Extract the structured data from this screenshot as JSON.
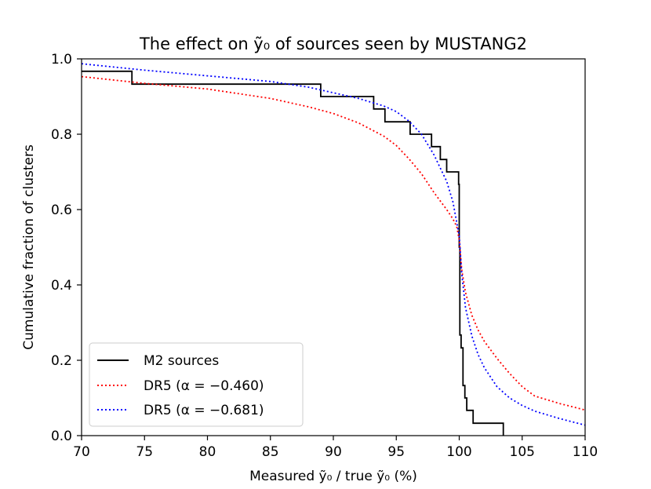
{
  "chart_data": {
    "type": "line",
    "title": "The effect on ỹ₀ of sources seen by MUSTANG2",
    "xlabel": "Measured ỹ₀ / true ỹ₀ (%)",
    "ylabel": "Cumulative fraction of clusters",
    "xlim": [
      70,
      110
    ],
    "ylim": [
      0.0,
      1.0
    ],
    "xticks": [
      70,
      75,
      80,
      85,
      90,
      95,
      100,
      105,
      110
    ],
    "xtick_labels": [
      "70",
      "75",
      "80",
      "85",
      "90",
      "95",
      "100",
      "105",
      "110"
    ],
    "yticks": [
      0.0,
      0.2,
      0.4,
      0.6,
      0.8,
      1.0
    ],
    "ytick_labels": [
      "0.0",
      "0.2",
      "0.4",
      "0.6",
      "0.8",
      "1.0"
    ],
    "grid": false,
    "legend_position": "bottom-left",
    "series": [
      {
        "name": "M2 sources",
        "style": "solid-step",
        "color": "#000000",
        "x": [
          70,
          74,
          74,
          89,
          89,
          93.2,
          93.2,
          94.1,
          94.1,
          96.1,
          96.1,
          97.8,
          97.8,
          98.5,
          98.5,
          99.0,
          99.0,
          99.95,
          99.95,
          100.0,
          100.0,
          100.05,
          100.05,
          100.15,
          100.15,
          100.3,
          100.3,
          100.45,
          100.45,
          100.6,
          100.6,
          101.1,
          101.1,
          103.5,
          103.5
        ],
        "y": [
          0.967,
          0.967,
          0.933,
          0.933,
          0.9,
          0.9,
          0.867,
          0.867,
          0.833,
          0.833,
          0.8,
          0.8,
          0.767,
          0.767,
          0.733,
          0.733,
          0.7,
          0.7,
          0.667,
          0.667,
          0.5,
          0.5,
          0.267,
          0.267,
          0.233,
          0.233,
          0.133,
          0.133,
          0.1,
          0.1,
          0.067,
          0.067,
          0.033,
          0.033,
          0.0
        ]
      },
      {
        "name": "DR5 (α = −0.460)",
        "style": "dotted",
        "color": "#ff0000",
        "x": [
          70,
          75,
          80,
          85,
          88,
          90,
          92,
          94,
          95,
          96,
          97,
          98,
          99,
          99.5,
          99.8,
          100,
          100.2,
          100.5,
          101,
          101.5,
          102,
          103,
          104,
          105,
          106,
          108,
          110
        ],
        "y": [
          0.953,
          0.935,
          0.92,
          0.895,
          0.873,
          0.855,
          0.83,
          0.795,
          0.77,
          0.735,
          0.695,
          0.645,
          0.6,
          0.575,
          0.555,
          0.52,
          0.44,
          0.38,
          0.32,
          0.28,
          0.25,
          0.205,
          0.165,
          0.13,
          0.105,
          0.085,
          0.068
        ]
      },
      {
        "name": "DR5 (α = −0.681)",
        "style": "dotted",
        "color": "#0000ff",
        "x": [
          70,
          75,
          80,
          85,
          88,
          90,
          92,
          94,
          95,
          96,
          97,
          98,
          98.5,
          99,
          99.5,
          100,
          100.2,
          100.5,
          101,
          101.5,
          102,
          103,
          104,
          105,
          106,
          108,
          110
        ],
        "y": [
          0.987,
          0.97,
          0.955,
          0.94,
          0.925,
          0.91,
          0.895,
          0.875,
          0.86,
          0.835,
          0.8,
          0.745,
          0.71,
          0.675,
          0.62,
          0.53,
          0.43,
          0.34,
          0.265,
          0.215,
          0.18,
          0.13,
          0.1,
          0.08,
          0.065,
          0.045,
          0.028
        ]
      }
    ]
  },
  "legend": {
    "entries": [
      "M2 sources",
      "DR5 (α = −0.460)",
      "DR5 (α = −0.681)"
    ]
  }
}
